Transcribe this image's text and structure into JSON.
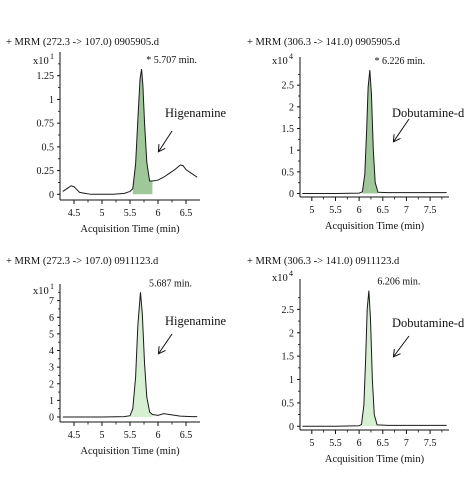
{
  "chart_data": [
    {
      "type": "line",
      "header": "+ MRM (272.3 -> 107.0) 0905905.d",
      "scale_label": "x10",
      "scale_exp": "1",
      "xlabel": "Acquisition Time (min)",
      "xlim": [
        4.25,
        6.75
      ],
      "ylim": [
        -0.06,
        1.5
      ],
      "xticks": [
        4.5,
        5,
        5.5,
        6,
        6.5
      ],
      "xtick_labels": [
        "4.5",
        "5",
        "5.5",
        "6",
        "6.5"
      ],
      "yticks": [
        0,
        0.25,
        0.5,
        0.75,
        1,
        1.25
      ],
      "ytick_labels": [
        "0",
        "0.25",
        "0.5",
        "0.75",
        "1",
        "1.25"
      ],
      "peak_label": "* 5.707 min.",
      "annotation": "Higenamine",
      "peak": {
        "center": 5.707,
        "start": 5.55,
        "end": 5.9
      },
      "fill_color": "#9fc79a",
      "series": [
        {
          "x": [
            4.3,
            4.4,
            4.45,
            4.5,
            4.55,
            4.6,
            4.7,
            4.8,
            5.0,
            5.2,
            5.4,
            5.5,
            5.55,
            5.6,
            5.65,
            5.68,
            5.707,
            5.73,
            5.76,
            5.8,
            5.85,
            5.9,
            6.0,
            6.1,
            6.2,
            6.3,
            6.4,
            6.45,
            6.5,
            6.6,
            6.7
          ],
          "y": [
            0.03,
            0.07,
            0.09,
            0.08,
            0.05,
            0.02,
            0.01,
            0.0,
            0.0,
            0.0,
            0.01,
            0.03,
            0.06,
            0.32,
            0.9,
            1.22,
            1.32,
            1.15,
            0.75,
            0.34,
            0.14,
            0.14,
            0.15,
            0.18,
            0.22,
            0.26,
            0.31,
            0.3,
            0.26,
            0.22,
            0.18
          ]
        }
      ]
    },
    {
      "type": "line",
      "header": "+ MRM (306.3 -> 141.0) 0905905.d",
      "scale_label": "x10",
      "scale_exp": "4",
      "xlabel": "Acquisition Time (min)",
      "xlim": [
        4.75,
        7.9
      ],
      "ylim": [
        -0.08,
        3.15
      ],
      "xticks": [
        5,
        5.5,
        6,
        6.5,
        7,
        7.5
      ],
      "xtick_labels": [
        "5",
        "5.5",
        "6",
        "6.5",
        "7",
        "7.5"
      ],
      "yticks": [
        0,
        0.5,
        1,
        1.5,
        2,
        2.5
      ],
      "ytick_labels": [
        "0",
        "0.5",
        "1",
        "1.5",
        "2",
        "2.5"
      ],
      "peak_label": "* 6.226 min.",
      "annotation": "Dobutamine-d",
      "peak": {
        "center": 6.226,
        "start": 6.07,
        "end": 6.4
      },
      "fill_color": "#9fc79a",
      "series": [
        {
          "x": [
            4.8,
            5.5,
            6.0,
            6.07,
            6.12,
            6.16,
            6.19,
            6.226,
            6.26,
            6.3,
            6.34,
            6.4,
            6.6,
            7.0,
            7.5,
            7.85
          ],
          "y": [
            0.0,
            0.0,
            0.01,
            0.04,
            0.45,
            1.5,
            2.45,
            2.85,
            2.3,
            1.0,
            0.25,
            0.03,
            0.02,
            0.02,
            0.02,
            0.02
          ]
        }
      ]
    },
    {
      "type": "line",
      "header": "+ MRM (272.3 -> 107.0) 0911123.d",
      "scale_label": "x10",
      "scale_exp": "1",
      "xlabel": "Acquisition Time (min)",
      "xlim": [
        4.25,
        6.75
      ],
      "ylim": [
        -0.3,
        8.0
      ],
      "xticks": [
        4.5,
        5,
        5.5,
        6,
        6.5
      ],
      "xtick_labels": [
        "4.5",
        "5",
        "5.5",
        "6",
        "6.5"
      ],
      "yticks": [
        0,
        1,
        2,
        3,
        4,
        5,
        6,
        7
      ],
      "ytick_labels": [
        "0",
        "1",
        "2",
        "3",
        "4",
        "5",
        "6",
        "7"
      ],
      "peak_label": "5.687 min.",
      "annotation": "Higenamine",
      "peak": {
        "center": 5.687,
        "start": 5.5,
        "end": 5.9
      },
      "fill_color": "#d6efd2",
      "series": [
        {
          "x": [
            4.3,
            5.0,
            5.4,
            5.5,
            5.55,
            5.6,
            5.64,
            5.687,
            5.72,
            5.76,
            5.8,
            5.85,
            5.9,
            6.0,
            6.1,
            6.2,
            6.4,
            6.6,
            6.7
          ],
          "y": [
            0.0,
            0.0,
            0.02,
            0.08,
            0.5,
            2.4,
            5.5,
            7.5,
            6.2,
            3.2,
            1.2,
            0.3,
            0.15,
            0.1,
            0.2,
            0.15,
            0.05,
            0.02,
            0.02
          ]
        }
      ]
    },
    {
      "type": "line",
      "header": "+ MRM (306.3 -> 141.0) 0911123.d",
      "scale_label": "x10",
      "scale_exp": "4",
      "xlabel": "Acquisition Time (min)",
      "xlim": [
        4.75,
        7.9
      ],
      "ylim": [
        -0.08,
        3.15
      ],
      "xticks": [
        5,
        5.5,
        6,
        6.5,
        7,
        7.5
      ],
      "xtick_labels": [
        "5",
        "5.5",
        "6",
        "6.5",
        "7",
        "7.5"
      ],
      "yticks": [
        0,
        0.5,
        1,
        1.5,
        2,
        2.5
      ],
      "ytick_labels": [
        "0",
        "0.5",
        "1",
        "1.5",
        "2",
        "2.5"
      ],
      "peak_label": "6.206 min.",
      "annotation": "Dobutamine-d",
      "peak": {
        "center": 6.206,
        "start": 6.05,
        "end": 6.38
      },
      "fill_color": "#d6efd2",
      "series": [
        {
          "x": [
            4.8,
            5.5,
            6.0,
            6.05,
            6.1,
            6.14,
            6.17,
            6.206,
            6.24,
            6.28,
            6.32,
            6.38,
            6.6,
            7.0,
            7.5,
            7.85
          ],
          "y": [
            0.0,
            0.0,
            0.01,
            0.04,
            0.45,
            1.5,
            2.5,
            2.9,
            2.3,
            1.0,
            0.25,
            0.03,
            0.02,
            0.02,
            0.02,
            0.02
          ]
        }
      ]
    }
  ]
}
